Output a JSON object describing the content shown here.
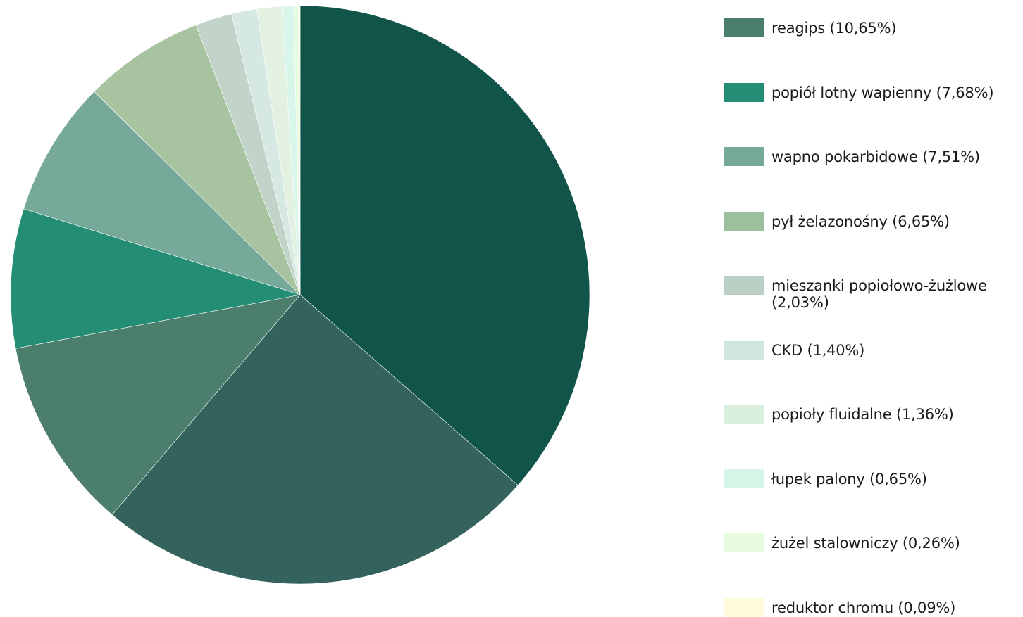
{
  "chart_data": {
    "type": "pie",
    "title": "",
    "slices": [
      {
        "label": "",
        "value": 36.0,
        "color": "#11554a"
      },
      {
        "label": "",
        "value": 24.5,
        "color": "#33635c"
      },
      {
        "label": "reagips (10,65%)",
        "value": 10.65,
        "color": "#4b7e6c"
      },
      {
        "label": "popiół lotny wapienny (7,68%)",
        "value": 7.68,
        "color": "#238e74"
      },
      {
        "label": "wapno pokarbidowe (7,51%)",
        "value": 7.51,
        "color": "#77a99b"
      },
      {
        "label": "pył żelazonośny (6,65%)",
        "value": 6.65,
        "color": "#a7c3a0"
      },
      {
        "label": "mieszanki popiołowo-żużlowe (2,03%)",
        "value": 2.03,
        "color": "#c2d4c9"
      },
      {
        "label": "CKD (1,40%)",
        "value": 1.4,
        "color": "#d5e8e2"
      },
      {
        "label": "popioły fluidalne (1,36%)",
        "value": 1.36,
        "color": "#e3f1e3"
      },
      {
        "label": "łupek palony (0,65%)",
        "value": 0.65,
        "color": "#d8f6e9"
      },
      {
        "label": "żużel stalowniczy (0,26%)",
        "value": 0.26,
        "color": "#e6fbe2"
      },
      {
        "label": "reduktor chromu (0,09%)",
        "value": 0.09,
        "color": "#fefbd8"
      }
    ],
    "legend": [
      {
        "label": "reagips (10,65%)",
        "color": "#4b7e6c"
      },
      {
        "label": "popiół lotny wapienny (7,68%)",
        "color": "#238e74"
      },
      {
        "label": "wapno pokarbidowe (7,51%)",
        "color": "#77a99b"
      },
      {
        "label": "pył żelazonośny (6,65%)",
        "color": "#9cbf9c"
      },
      {
        "label": "mieszanki popiołowo-żużlowe (2,03%)",
        "color": "#bbcfc4"
      },
      {
        "label": "CKD (1,40%)",
        "color": "#d0e5df"
      },
      {
        "label": "popioły fluidalne (1,36%)",
        "color": "#daf0dc"
      },
      {
        "label": "łupek palony (0,65%)",
        "color": "#d6f6e8"
      },
      {
        "label": "żużel stalowniczy (0,26%)",
        "color": "#e6fbe0"
      },
      {
        "label": "reduktor chromu (0,09%)",
        "color": "#fefcda"
      }
    ],
    "legend_position": "right",
    "start_angle": "12 o'clock",
    "direction": "clockwise"
  }
}
